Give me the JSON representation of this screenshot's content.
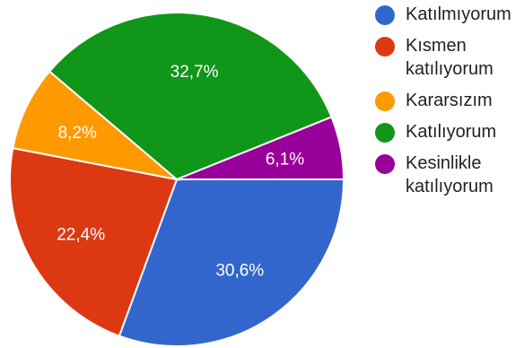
{
  "chart_data": {
    "type": "pie",
    "title": "",
    "slices": [
      {
        "label": "Katılmıyorum",
        "value": 30.6,
        "display": "30,6%",
        "color": "#3366cc"
      },
      {
        "label": "Kısmen katılıyorum",
        "value": 22.4,
        "display": "22,4%",
        "color": "#dc3912"
      },
      {
        "label": "Kararsızım",
        "value": 8.2,
        "display": "8,2%",
        "color": "#ff9900"
      },
      {
        "label": "Katılıyorum",
        "value": 32.7,
        "display": "32,7%",
        "color": "#109618"
      },
      {
        "label": "Kesinlikle katılıyorum",
        "value": 6.1,
        "display": "6,1%",
        "color": "#990099"
      }
    ],
    "legend_position": "right",
    "start": "3 o'clock, clockwise"
  }
}
